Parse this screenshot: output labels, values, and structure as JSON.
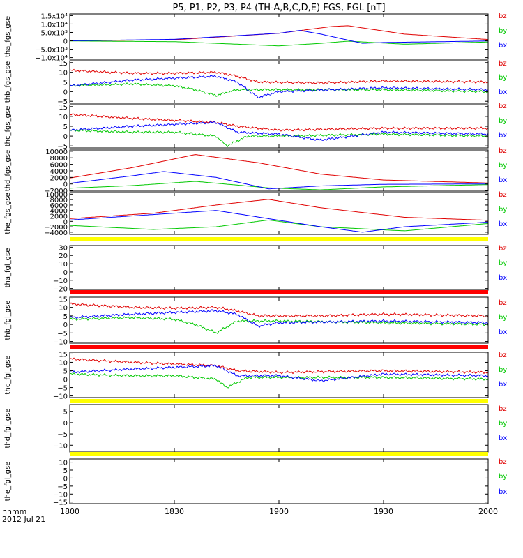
{
  "title": "P5, P1, P2, P3, P4 (TH-A,B,C,D,E) FGS, FGL [nT]",
  "x_axis": {
    "ticks": [
      "1800",
      "1830",
      "1900",
      "1930",
      "2000"
    ],
    "tick_hours": [
      18.0,
      18.5,
      19.0,
      19.5,
      20.0
    ],
    "range_hours": [
      18.0,
      20.0
    ],
    "label_line1": "hhmm",
    "label_line2": "2012 Jul 21"
  },
  "colors": {
    "bz": "#e00000",
    "by": "#00c800",
    "bx": "#0000ff",
    "bar_yellow": "#ffff00",
    "bar_red": "#ff0000"
  },
  "chart_data": [
    {
      "type": "line",
      "ylabel": "tha_fgs_gse",
      "legend": [
        "bz",
        "by",
        "bx"
      ],
      "yticks": [
        "1.5x10⁴",
        "1.0x10⁴",
        "5.0x10³",
        "0",
        "−5.0x10³",
        "−1.0x10⁴"
      ],
      "ytick_values": [
        15000,
        10000,
        5000,
        0,
        -5000,
        -10000
      ],
      "ylim": [
        -11000,
        16000
      ],
      "series": [
        {
          "name": "bz",
          "x": [
            18.0,
            18.5,
            19.0,
            19.25,
            19.33,
            19.6,
            20.0
          ],
          "y": [
            100,
            600,
            4500,
            8500,
            9000,
            4000,
            800
          ]
        },
        {
          "name": "by",
          "x": [
            18.0,
            18.5,
            18.8,
            19.0,
            19.2,
            19.33,
            19.6,
            20.0
          ],
          "y": [
            -100,
            -500,
            -2000,
            -3000,
            -1500,
            -200,
            -2000,
            -700
          ]
        },
        {
          "name": "bx",
          "x": [
            18.0,
            18.5,
            19.0,
            19.1,
            19.2,
            19.4,
            19.5,
            20.0
          ],
          "y": [
            0,
            900,
            4500,
            6200,
            4000,
            -1500,
            -1000,
            -100
          ]
        }
      ]
    },
    {
      "type": "line",
      "ylabel": "thb_fgs_gse",
      "legend": [
        "bz",
        "by",
        "bx"
      ],
      "yticks": [
        "15",
        "10",
        "5",
        "0",
        "−5"
      ],
      "ytick_values": [
        15,
        10,
        5,
        0,
        -5
      ],
      "ylim": [
        -6,
        16
      ],
      "series": [
        {
          "name": "bz",
          "x": [
            18.0,
            18.3,
            18.5,
            18.7,
            18.8,
            18.9,
            19.2,
            19.5,
            20.0
          ],
          "y": [
            11,
            9.5,
            9.5,
            10,
            8,
            5,
            4.5,
            5.5,
            5
          ]
        },
        {
          "name": "by",
          "x": [
            18.0,
            18.3,
            18.5,
            18.6,
            18.7,
            18.8,
            19.0,
            19.5,
            20.0
          ],
          "y": [
            3,
            4,
            3,
            1,
            -2,
            1,
            1,
            1,
            0
          ]
        },
        {
          "name": "bx",
          "x": [
            18.0,
            18.3,
            18.5,
            18.7,
            18.8,
            18.9,
            19.0,
            19.5,
            20.0
          ],
          "y": [
            3,
            6,
            7,
            8,
            5,
            -3,
            0,
            2,
            1
          ]
        }
      ]
    },
    {
      "type": "line",
      "ylabel": "thc_fgs_gse",
      "legend": [
        "bz",
        "by",
        "bx"
      ],
      "yticks": [
        "15",
        "10",
        "5",
        "0",
        "−5"
      ],
      "ytick_values": [
        15,
        10,
        5,
        0,
        -5
      ],
      "ylim": [
        -6,
        16
      ],
      "series": [
        {
          "name": "bz",
          "x": [
            18.0,
            18.3,
            18.5,
            18.7,
            18.8,
            19.0,
            19.5,
            20.0
          ],
          "y": [
            11,
            9,
            8,
            7,
            5,
            3,
            4,
            4
          ]
        },
        {
          "name": "by",
          "x": [
            18.0,
            18.3,
            18.5,
            18.7,
            18.75,
            18.85,
            19.0,
            19.5,
            20.0
          ],
          "y": [
            3,
            2,
            2,
            0,
            -5,
            0,
            0,
            1,
            0
          ]
        },
        {
          "name": "bx",
          "x": [
            18.0,
            18.3,
            18.5,
            18.7,
            18.8,
            19.0,
            19.2,
            19.5,
            20.0
          ],
          "y": [
            3,
            5,
            6,
            7,
            2,
            1,
            -2,
            2,
            1
          ]
        }
      ]
    },
    {
      "type": "line",
      "ylabel": "thd_fgs_gse",
      "legend": [
        "bz",
        "by",
        "bx"
      ],
      "yticks": [
        "10000",
        "8000",
        "6000",
        "4000",
        "2000",
        "0",
        "−2000"
      ],
      "ytick_values": [
        10000,
        8000,
        6000,
        4000,
        2000,
        0,
        -2000
      ],
      "ylim": [
        -2200,
        10400
      ],
      "series": [
        {
          "name": "bz",
          "x": [
            18.0,
            18.3,
            18.6,
            18.9,
            19.2,
            19.5,
            20.0
          ],
          "y": [
            1800,
            5000,
            9000,
            6500,
            3000,
            1200,
            300
          ]
        },
        {
          "name": "by",
          "x": [
            18.0,
            18.3,
            18.6,
            18.95,
            19.2,
            19.5,
            20.0
          ],
          "y": [
            -1300,
            -500,
            800,
            -1200,
            -1800,
            -900,
            -200
          ]
        },
        {
          "name": "bx",
          "x": [
            18.0,
            18.3,
            18.45,
            18.7,
            18.95,
            19.2,
            19.5,
            20.0
          ],
          "y": [
            200,
            2500,
            3800,
            2000,
            -1500,
            -600,
            -100,
            0
          ]
        }
      ]
    },
    {
      "type": "line",
      "ylabel": "the_fgs_gse",
      "legend": [
        "bz",
        "by",
        "bx"
      ],
      "yticks": [
        "10000",
        "8000",
        "6000",
        "4000",
        "2000",
        "0",
        "−2000",
        "−4000"
      ],
      "ytick_values": [
        10000,
        8000,
        6000,
        4000,
        2000,
        0,
        -2000,
        -4000
      ],
      "ylim": [
        -4800,
        10600
      ],
      "series": [
        {
          "name": "bz",
          "x": [
            18.0,
            18.4,
            18.7,
            18.95,
            19.2,
            19.6,
            20.0
          ],
          "y": [
            1000,
            3000,
            6000,
            8100,
            5000,
            1500,
            400
          ]
        },
        {
          "name": "by",
          "x": [
            18.0,
            18.4,
            18.7,
            18.95,
            19.2,
            19.6,
            20.0
          ],
          "y": [
            -1500,
            -3000,
            -2000,
            500,
            -2000,
            -3500,
            -800
          ]
        },
        {
          "name": "bx",
          "x": [
            18.0,
            18.4,
            18.7,
            18.95,
            19.2,
            19.4,
            19.6,
            20.0
          ],
          "y": [
            500,
            2500,
            4000,
            1000,
            -2000,
            -4000,
            -2000,
            -300
          ]
        }
      ]
    },
    {
      "type": "line",
      "ylabel": "tha_fgl_gse",
      "legend": [
        "bz",
        "by",
        "bx"
      ],
      "yticks": [
        "30",
        "20",
        "10",
        "0",
        "−10",
        "−20"
      ],
      "ytick_values": [
        30,
        20,
        10,
        0,
        -10,
        -20
      ],
      "ylim": [
        -22,
        32
      ],
      "series": [],
      "bar_color": "bar_yellow"
    },
    {
      "type": "line",
      "ylabel": "thb_fgl_gse",
      "legend": [
        "bz",
        "by",
        "bx"
      ],
      "yticks": [
        "15",
        "10",
        "5",
        "0",
        "−5",
        "−10"
      ],
      "ytick_values": [
        15,
        10,
        5,
        0,
        -5,
        -10
      ],
      "ylim": [
        -11,
        16
      ],
      "series": [
        {
          "name": "bz",
          "x": [
            18.0,
            18.3,
            18.5,
            18.7,
            18.8,
            18.9,
            19.2,
            19.5,
            20.0
          ],
          "y": [
            12,
            10,
            9.5,
            10,
            8,
            5,
            5,
            6,
            5
          ]
        },
        {
          "name": "by",
          "x": [
            18.0,
            18.3,
            18.5,
            18.6,
            18.7,
            18.8,
            19.0,
            19.5,
            20.0
          ],
          "y": [
            3,
            4,
            3,
            0,
            -5,
            2,
            2,
            1,
            0
          ]
        },
        {
          "name": "bx",
          "x": [
            18.0,
            18.3,
            18.5,
            18.7,
            18.8,
            18.9,
            19.0,
            19.5,
            20.0
          ],
          "y": [
            4,
            6,
            7,
            8,
            6,
            -1,
            1,
            2,
            1
          ]
        }
      ],
      "bar_color": "bar_red"
    },
    {
      "type": "line",
      "ylabel": "thc_fgl_gse",
      "legend": [
        "bz",
        "by",
        "bx"
      ],
      "yticks": [
        "15",
        "10",
        "5",
        "0",
        "−5",
        "−10"
      ],
      "ytick_values": [
        15,
        10,
        5,
        0,
        -5,
        -10
      ],
      "ylim": [
        -11,
        16
      ],
      "series": [
        {
          "name": "bz",
          "x": [
            18.0,
            18.3,
            18.5,
            18.7,
            18.8,
            19.0,
            19.5,
            20.0
          ],
          "y": [
            12,
            10,
            9,
            8,
            5,
            4,
            5,
            4
          ]
        },
        {
          "name": "by",
          "x": [
            18.0,
            18.3,
            18.5,
            18.7,
            18.75,
            18.85,
            19.0,
            19.5,
            20.0
          ],
          "y": [
            3,
            2,
            2,
            0,
            -5,
            1,
            1,
            1,
            0
          ]
        },
        {
          "name": "bx",
          "x": [
            18.0,
            18.3,
            18.5,
            18.7,
            18.8,
            19.0,
            19.2,
            19.5,
            20.0
          ],
          "y": [
            4,
            6,
            7,
            8,
            2,
            2,
            -1,
            3,
            2
          ]
        }
      ],
      "bar_color": "bar_red"
    },
    {
      "type": "line",
      "ylabel": "thd_fgl_gse",
      "legend": [
        "bz",
        "by",
        "bx"
      ],
      "yticks": [
        "5",
        "0",
        "−5",
        "−10"
      ],
      "ytick_values": [
        5,
        0,
        -5,
        -10
      ],
      "ylim": [
        -13,
        8
      ],
      "series": [],
      "bar_color": "bar_yellow"
    },
    {
      "type": "line",
      "ylabel": "the_fgl_gse",
      "legend": [
        "bz",
        "by",
        "bx"
      ],
      "yticks": [
        "10",
        "5",
        "0",
        "−5",
        "−10",
        "−15"
      ],
      "ytick_values": [
        10,
        5,
        0,
        -5,
        -10,
        -15
      ],
      "ylim": [
        -16,
        12
      ],
      "series": [],
      "bar_color": "bar_yellow"
    }
  ]
}
